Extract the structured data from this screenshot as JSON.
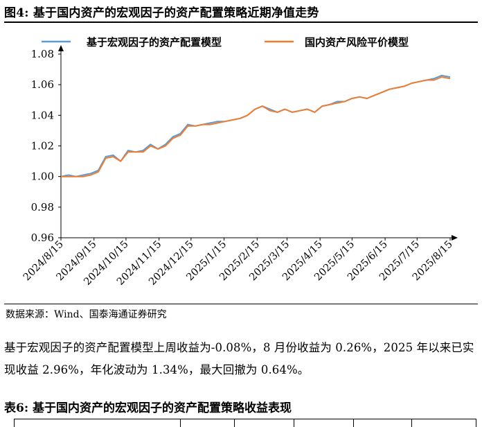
{
  "figure_title": "图4:  基于国内资产的宏观因子的资产配置策略近期净值走势",
  "source_note": "数据来源：Wind、国泰海通证券研究",
  "paragraph": "基于宏观因子的资产配置模型上周收益为-0.08%，8 月份收益为 0.26%，2025 年以来已实现收益 2.96%，年化波动为 1.34%，最大回撤为 0.64%。",
  "table_title": "表6:  基于国内资产的宏观因子的资产配置策略收益表现",
  "colors": {
    "series1": "#5b9bd5",
    "series2": "#ed7d31"
  },
  "chart_data": {
    "type": "line",
    "title": "",
    "xlabel": "",
    "ylabel": "",
    "ylim": [
      0.96,
      1.08
    ],
    "yticks": [
      "0.96",
      "0.98",
      "1.00",
      "1.02",
      "1.04",
      "1.06",
      "1.08"
    ],
    "xticks": [
      "2024/8/15",
      "2024/9/15",
      "2024/10/15",
      "2024/11/15",
      "2024/12/15",
      "2025/1/15",
      "2025/2/15",
      "2025/3/15",
      "2025/4/15",
      "2025/5/15",
      "2025/6/15",
      "2025/7/15",
      "2025/8/15"
    ],
    "legend_position": "top",
    "grid": false,
    "x": [
      "2024/8/15",
      "2024/8/22",
      "2024/8/29",
      "2024/9/5",
      "2024/9/12",
      "2024/9/19",
      "2024/9/26",
      "2024/10/3",
      "2024/10/10",
      "2024/10/17",
      "2024/10/24",
      "2024/10/31",
      "2024/11/7",
      "2024/11/14",
      "2024/11/21",
      "2024/11/28",
      "2024/12/5",
      "2024/12/12",
      "2024/12/19",
      "2024/12/26",
      "2025/1/2",
      "2025/1/9",
      "2025/1/16",
      "2025/1/23",
      "2025/1/30",
      "2025/2/6",
      "2025/2/13",
      "2025/2/20",
      "2025/2/27",
      "2025/3/6",
      "2025/3/13",
      "2025/3/20",
      "2025/3/27",
      "2025/4/3",
      "2025/4/10",
      "2025/4/17",
      "2025/4/24",
      "2025/5/1",
      "2025/5/8",
      "2025/5/15",
      "2025/5/22",
      "2025/5/29",
      "2025/6/5",
      "2025/6/12",
      "2025/6/19",
      "2025/6/26",
      "2025/7/3",
      "2025/7/10",
      "2025/7/17",
      "2025/7/24",
      "2025/7/31",
      "2025/8/7",
      "2025/8/15"
    ],
    "series": [
      {
        "name": "基于宏观因子的资产配置模型",
        "values": [
          1.0,
          1.001,
          1.0,
          1.001,
          1.002,
          1.004,
          1.013,
          1.014,
          1.01,
          1.017,
          1.016,
          1.017,
          1.021,
          1.018,
          1.021,
          1.026,
          1.028,
          1.034,
          1.033,
          1.034,
          1.035,
          1.036,
          1.036,
          1.037,
          1.038,
          1.04,
          1.044,
          1.046,
          1.044,
          1.042,
          1.044,
          1.042,
          1.043,
          1.044,
          1.042,
          1.046,
          1.047,
          1.049,
          1.049,
          1.051,
          1.052,
          1.051,
          1.053,
          1.055,
          1.057,
          1.058,
          1.059,
          1.061,
          1.062,
          1.063,
          1.064,
          1.066,
          1.065
        ]
      },
      {
        "name": "国内资产风险平价模型",
        "values": [
          1.0,
          1.0,
          1.0,
          1.0,
          1.001,
          1.003,
          1.012,
          1.013,
          1.01,
          1.016,
          1.016,
          1.016,
          1.02,
          1.018,
          1.02,
          1.025,
          1.027,
          1.033,
          1.033,
          1.034,
          1.034,
          1.035,
          1.036,
          1.037,
          1.038,
          1.04,
          1.044,
          1.046,
          1.043,
          1.042,
          1.044,
          1.042,
          1.043,
          1.044,
          1.042,
          1.046,
          1.047,
          1.048,
          1.049,
          1.051,
          1.052,
          1.051,
          1.053,
          1.055,
          1.057,
          1.058,
          1.059,
          1.061,
          1.062,
          1.063,
          1.063,
          1.065,
          1.064
        ]
      }
    ]
  }
}
